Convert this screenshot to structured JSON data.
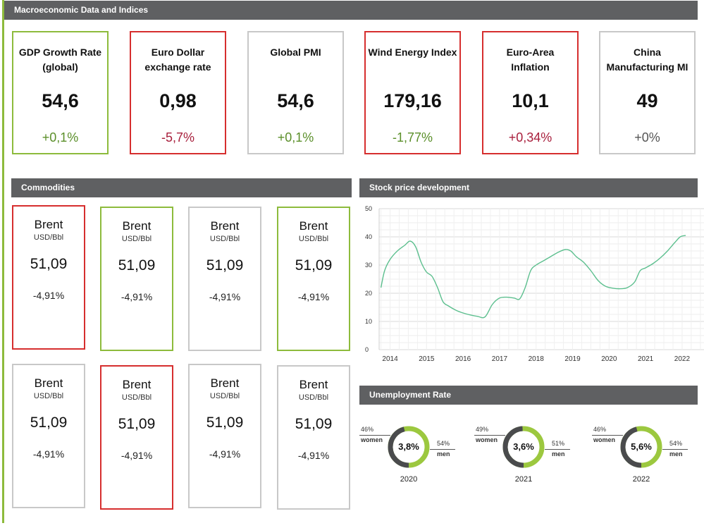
{
  "headers": {
    "macro": "Macroeconomic Data and Indices",
    "commodities": "Commodities",
    "stock": "Stock price development",
    "unemployment": "Unemployment Rate"
  },
  "macro_cards": [
    {
      "title_line1": "GDP Growth Rate",
      "title_line2": "(global)",
      "value": "54,6",
      "change": "+0,1%",
      "border": "green",
      "trend": "pos"
    },
    {
      "title_line1": "Euro Dollar",
      "title_line2": "exchange rate",
      "value": "0,98",
      "change": "-5,7%",
      "border": "red",
      "trend": "neg"
    },
    {
      "title_line1": "Global PMI",
      "title_line2": "",
      "value": "54,6",
      "change": "+0,1%",
      "border": "grey",
      "trend": "pos"
    },
    {
      "title_line1": "Wind Energy Index",
      "title_line2": "",
      "value": "179,16",
      "change": "-1,77%",
      "border": "red",
      "trend": "pos"
    },
    {
      "title_line1": "Euro-Area",
      "title_line2": "Inflation",
      "value": "10,1",
      "change": "+0,34%",
      "border": "red",
      "trend": "neg"
    },
    {
      "title_line1": "China",
      "title_line2": "Manufacturing MI",
      "value": "49",
      "change": "+0%",
      "border": "grey",
      "trend": "neu"
    }
  ],
  "commodities": [
    {
      "name": "Brent",
      "unit": "USD/Bbl",
      "price": "51,09",
      "change": "-4,91%",
      "border": "red"
    },
    {
      "name": "Brent",
      "unit": "USD/Bbl",
      "price": "51,09",
      "change": "-4,91%",
      "border": "green"
    },
    {
      "name": "Brent",
      "unit": "USD/Bbl",
      "price": "51,09",
      "change": "-4,91%",
      "border": "grey"
    },
    {
      "name": "Brent",
      "unit": "USD/Bbl",
      "price": "51,09",
      "change": "-4,91%",
      "border": "green"
    },
    {
      "name": "Brent",
      "unit": "USD/Bbl",
      "price": "51,09",
      "change": "-4,91%",
      "border": "grey"
    },
    {
      "name": "Brent",
      "unit": "USD/Bbl",
      "price": "51,09",
      "change": "-4,91%",
      "border": "red"
    },
    {
      "name": "Brent",
      "unit": "USD/Bbl",
      "price": "51,09",
      "change": "-4,91%",
      "border": "grey"
    },
    {
      "name": "Brent",
      "unit": "USD/Bbl",
      "price": "51,09",
      "change": "-4,91%",
      "border": "grey"
    }
  ],
  "chart_data": {
    "type": "line",
    "title": "Stock price development",
    "xlabel": "",
    "ylabel": "",
    "ylim": [
      0,
      50
    ],
    "yticks": [
      0,
      10,
      20,
      30,
      40,
      50
    ],
    "xticks": [
      "2014",
      "2015",
      "2016",
      "2017",
      "2018",
      "2019",
      "2020",
      "2021",
      "2022"
    ],
    "xlim": [
      2013.7,
      2022.6
    ],
    "grid": true,
    "line_color": "#5cbf8e",
    "series": [
      {
        "x": [
          2013.75,
          2013.85,
          2014.0,
          2014.2,
          2014.4,
          2014.55,
          2014.7,
          2014.85,
          2015.0,
          2015.15,
          2015.3,
          2015.45,
          2015.6,
          2015.8,
          2016.0,
          2016.2,
          2016.4,
          2016.6,
          2016.8,
          2017.0,
          2017.2,
          2017.4,
          2017.55,
          2017.7,
          2017.85,
          2018.0,
          2018.2,
          2018.4,
          2018.6,
          2018.8,
          2018.95,
          2019.1,
          2019.3,
          2019.5,
          2019.7,
          2019.9,
          2020.1,
          2020.3,
          2020.5,
          2020.7,
          2020.85,
          2021.0,
          2021.2,
          2021.4,
          2021.6,
          2021.8,
          2021.95,
          2022.1
        ],
        "y": [
          22,
          28,
          32,
          35,
          37,
          38.5,
          36.5,
          31,
          27.5,
          26,
          22,
          17,
          15.5,
          14,
          13,
          12.3,
          11.8,
          11.6,
          16,
          18.3,
          18.6,
          18.3,
          18,
          22,
          28,
          30,
          31.5,
          33,
          34.5,
          35.5,
          35,
          33,
          31,
          28,
          24.5,
          22.5,
          21.8,
          21.6,
          22,
          24,
          28,
          29,
          30.5,
          32.5,
          35,
          38,
          40,
          40.5
        ]
      }
    ]
  },
  "unemployment": [
    {
      "year": "2020",
      "center": "3,8%",
      "women_pct": "46%",
      "women_label": "women",
      "men_pct": "54%",
      "men_label": "men",
      "women_frac": 0.46
    },
    {
      "year": "2021",
      "center": "3,6%",
      "women_pct": "49%",
      "women_label": "women",
      "men_pct": "51%",
      "men_label": "men",
      "women_frac": 0.49
    },
    {
      "year": "2022",
      "center": "5,6%",
      "women_pct": "46%",
      "women_label": "women",
      "men_pct": "54%",
      "men_label": "men",
      "women_frac": 0.46
    }
  ],
  "colors": {
    "green": "#8dbb3c",
    "red": "#d62e2e",
    "grey": "#c8c8c8",
    "header": "#5f6062",
    "donut_dark": "#4a4b4d",
    "donut_light": "#9cc83f"
  }
}
